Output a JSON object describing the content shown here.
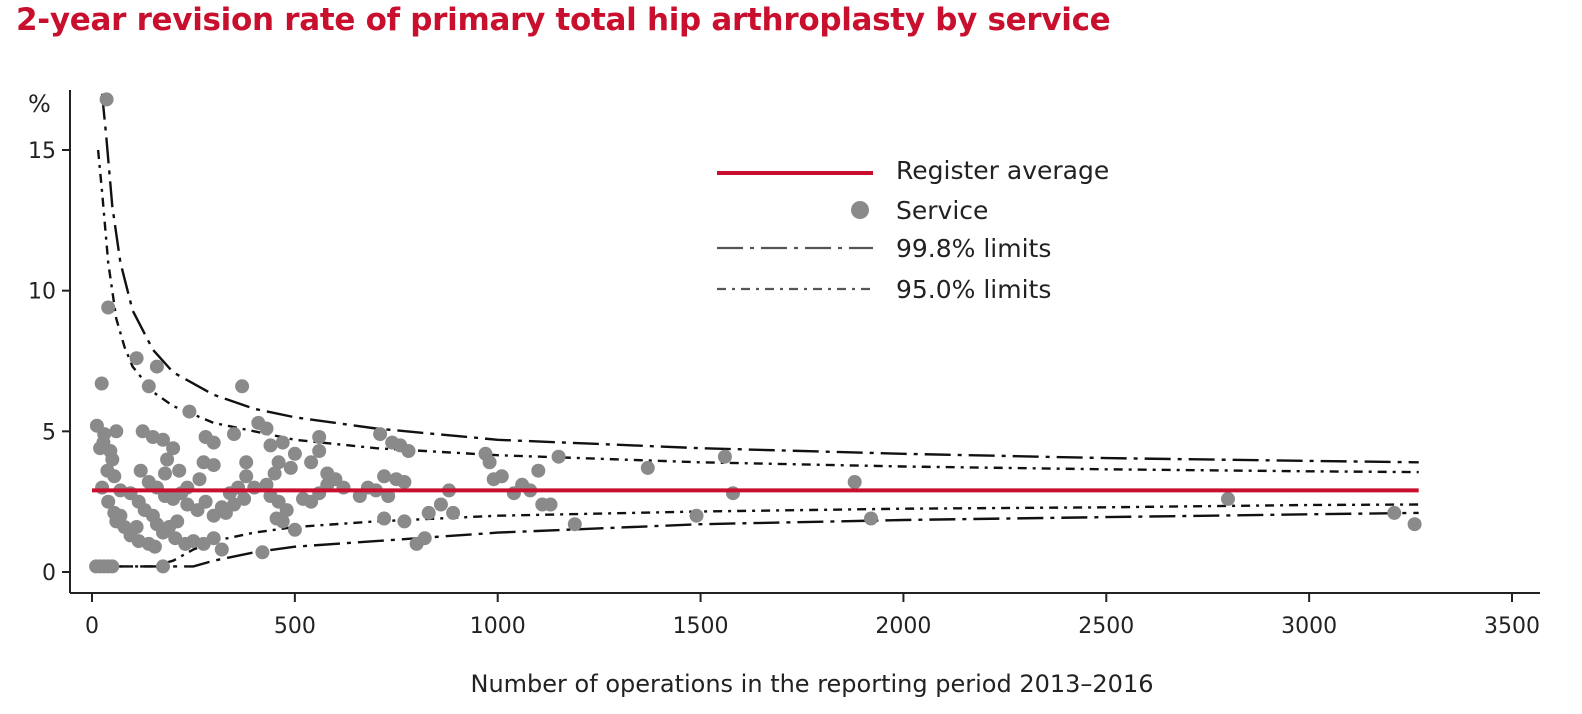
{
  "chart_data": {
    "type": "scatter",
    "title": "2-year revision rate of primary total hip arthroplasty by service",
    "xlabel": "Number of operations in the reporting period 2013–2016",
    "ylabel": "%",
    "xlim": [
      0,
      3500
    ],
    "ylim": [
      -0.8,
      17
    ],
    "xticks": [
      0,
      500,
      1000,
      1500,
      2000,
      2500,
      3000,
      3500
    ],
    "yticks": [
      0,
      5,
      10,
      15
    ],
    "grid": false,
    "legend": {
      "position": "top-right",
      "entries": [
        "Register average",
        "Service",
        "99.8% limits",
        "95.0% limits"
      ]
    },
    "colors": {
      "average": "#c8102e",
      "points": "#8a8a8a",
      "limits": "#111111",
      "title": "#c8102e"
    },
    "register_average": {
      "name": "Register average",
      "value": 2.9,
      "x_range": [
        0,
        3270
      ]
    },
    "series": [
      {
        "name": "Service",
        "points": [
          [
            36,
            16.8
          ],
          [
            40,
            9.4
          ],
          [
            24,
            6.7
          ],
          [
            12,
            5.2
          ],
          [
            30,
            4.9
          ],
          [
            20,
            4.4
          ],
          [
            45,
            4.3
          ],
          [
            50,
            4.0
          ],
          [
            60,
            5.0
          ],
          [
            28,
            4.6
          ],
          [
            38,
            3.6
          ],
          [
            55,
            3.4
          ],
          [
            25,
            3.0
          ],
          [
            40,
            2.5
          ],
          [
            55,
            2.1
          ],
          [
            70,
            2.0
          ],
          [
            60,
            1.8
          ],
          [
            80,
            1.6
          ],
          [
            95,
            1.3
          ],
          [
            115,
            1.1
          ],
          [
            140,
            1.0
          ],
          [
            155,
            0.9
          ],
          [
            175,
            0.2
          ],
          [
            110,
            1.6
          ],
          [
            10,
            0.2
          ],
          [
            20,
            0.2
          ],
          [
            30,
            0.2
          ],
          [
            40,
            0.2
          ],
          [
            50,
            0.2
          ],
          [
            70,
            2.9
          ],
          [
            95,
            2.8
          ],
          [
            115,
            2.5
          ],
          [
            130,
            2.2
          ],
          [
            150,
            2.0
          ],
          [
            160,
            1.7
          ],
          [
            175,
            1.4
          ],
          [
            205,
            1.2
          ],
          [
            230,
            1.0
          ],
          [
            250,
            1.1
          ],
          [
            275,
            1.0
          ],
          [
            300,
            1.2
          ],
          [
            320,
            0.8
          ],
          [
            190,
            1.6
          ],
          [
            210,
            1.8
          ],
          [
            235,
            2.4
          ],
          [
            260,
            2.2
          ],
          [
            280,
            2.5
          ],
          [
            300,
            2.0
          ],
          [
            330,
            2.1
          ],
          [
            350,
            2.4
          ],
          [
            375,
            2.6
          ],
          [
            340,
            2.8
          ],
          [
            320,
            2.3
          ],
          [
            360,
            3.0
          ],
          [
            380,
            3.4
          ],
          [
            400,
            3.0
          ],
          [
            420,
            0.7
          ],
          [
            110,
            7.6
          ],
          [
            160,
            7.3
          ],
          [
            140,
            6.6
          ],
          [
            240,
            5.7
          ],
          [
            125,
            5.0
          ],
          [
            150,
            4.8
          ],
          [
            175,
            4.7
          ],
          [
            200,
            4.4
          ],
          [
            185,
            4.0
          ],
          [
            215,
            3.6
          ],
          [
            280,
            4.8
          ],
          [
            300,
            4.6
          ],
          [
            275,
            3.9
          ],
          [
            300,
            3.8
          ],
          [
            265,
            3.3
          ],
          [
            235,
            3.0
          ],
          [
            220,
            2.8
          ],
          [
            200,
            2.6
          ],
          [
            180,
            2.7
          ],
          [
            160,
            3.0
          ],
          [
            140,
            3.2
          ],
          [
            120,
            3.6
          ],
          [
            180,
            3.5
          ],
          [
            370,
            6.6
          ],
          [
            410,
            5.3
          ],
          [
            430,
            5.1
          ],
          [
            350,
            4.9
          ],
          [
            380,
            3.9
          ],
          [
            440,
            4.5
          ],
          [
            470,
            4.6
          ],
          [
            460,
            3.9
          ],
          [
            500,
            4.2
          ],
          [
            490,
            3.7
          ],
          [
            450,
            3.5
          ],
          [
            430,
            3.1
          ],
          [
            440,
            2.7
          ],
          [
            460,
            2.5
          ],
          [
            470,
            1.8
          ],
          [
            480,
            2.2
          ],
          [
            500,
            1.5
          ],
          [
            455,
            1.9
          ],
          [
            520,
            2.6
          ],
          [
            540,
            2.5
          ],
          [
            560,
            2.8
          ],
          [
            580,
            3.1
          ],
          [
            600,
            3.3
          ],
          [
            620,
            3.0
          ],
          [
            560,
            4.3
          ],
          [
            560,
            4.8
          ],
          [
            540,
            3.9
          ],
          [
            580,
            3.5
          ],
          [
            660,
            2.7
          ],
          [
            680,
            3.0
          ],
          [
            700,
            2.9
          ],
          [
            710,
            4.9
          ],
          [
            720,
            3.4
          ],
          [
            740,
            4.6
          ],
          [
            760,
            4.5
          ],
          [
            780,
            4.3
          ],
          [
            750,
            3.3
          ],
          [
            770,
            3.2
          ],
          [
            730,
            2.7
          ],
          [
            720,
            1.9
          ],
          [
            770,
            1.8
          ],
          [
            800,
            1.0
          ],
          [
            820,
            1.2
          ],
          [
            830,
            2.1
          ],
          [
            860,
            2.4
          ],
          [
            880,
            2.9
          ],
          [
            890,
            2.1
          ],
          [
            970,
            4.2
          ],
          [
            980,
            3.9
          ],
          [
            990,
            3.3
          ],
          [
            1010,
            3.4
          ],
          [
            1040,
            2.8
          ],
          [
            1060,
            3.1
          ],
          [
            1080,
            2.9
          ],
          [
            1100,
            3.6
          ],
          [
            1110,
            2.4
          ],
          [
            1130,
            2.4
          ],
          [
            1150,
            4.1
          ],
          [
            1190,
            1.7
          ],
          [
            1370,
            3.7
          ],
          [
            1490,
            2.0
          ],
          [
            1560,
            4.1
          ],
          [
            1580,
            2.8
          ],
          [
            1880,
            3.2
          ],
          [
            1920,
            1.9
          ],
          [
            2800,
            2.6
          ],
          [
            3210,
            2.1
          ],
          [
            3260,
            1.7
          ]
        ]
      }
    ],
    "control_limits": [
      {
        "name": "99.8% limits",
        "style": "long-dash-dot",
        "upper": [
          [
            25,
            17.0
          ],
          [
            35,
            15.5
          ],
          [
            50,
            13.0
          ],
          [
            70,
            11.0
          ],
          [
            100,
            9.3
          ],
          [
            150,
            7.9
          ],
          [
            200,
            7.1
          ],
          [
            300,
            6.3
          ],
          [
            400,
            5.8
          ],
          [
            500,
            5.5
          ],
          [
            700,
            5.1
          ],
          [
            1000,
            4.7
          ],
          [
            1500,
            4.4
          ],
          [
            2000,
            4.2
          ],
          [
            2500,
            4.05
          ],
          [
            3000,
            3.95
          ],
          [
            3270,
            3.9
          ]
        ],
        "lower": [
          [
            10,
            0.2
          ],
          [
            100,
            0.2
          ],
          [
            200,
            0.2
          ],
          [
            250,
            0.2
          ],
          [
            300,
            0.4
          ],
          [
            400,
            0.7
          ],
          [
            500,
            0.9
          ],
          [
            700,
            1.1
          ],
          [
            1000,
            1.4
          ],
          [
            1500,
            1.7
          ],
          [
            2000,
            1.85
          ],
          [
            2500,
            1.95
          ],
          [
            3000,
            2.05
          ],
          [
            3270,
            2.1
          ]
        ]
      },
      {
        "name": "95.0% limits",
        "style": "dash-dot-dot",
        "upper": [
          [
            15,
            15.0
          ],
          [
            25,
            13.5
          ],
          [
            40,
            11.0
          ],
          [
            60,
            9.0
          ],
          [
            80,
            8.0
          ],
          [
            100,
            7.3
          ],
          [
            150,
            6.4
          ],
          [
            200,
            5.9
          ],
          [
            300,
            5.3
          ],
          [
            400,
            5.0
          ],
          [
            500,
            4.7
          ],
          [
            700,
            4.4
          ],
          [
            1000,
            4.15
          ],
          [
            1500,
            3.9
          ],
          [
            2000,
            3.75
          ],
          [
            2500,
            3.65
          ],
          [
            3000,
            3.58
          ],
          [
            3270,
            3.55
          ]
        ],
        "lower": [
          [
            10,
            0.2
          ],
          [
            150,
            0.2
          ],
          [
            200,
            0.4
          ],
          [
            250,
            0.8
          ],
          [
            300,
            1.1
          ],
          [
            400,
            1.4
          ],
          [
            500,
            1.6
          ],
          [
            700,
            1.8
          ],
          [
            1000,
            2.0
          ],
          [
            1500,
            2.15
          ],
          [
            2000,
            2.25
          ],
          [
            2500,
            2.3
          ],
          [
            3000,
            2.38
          ],
          [
            3270,
            2.4
          ]
        ]
      }
    ]
  }
}
